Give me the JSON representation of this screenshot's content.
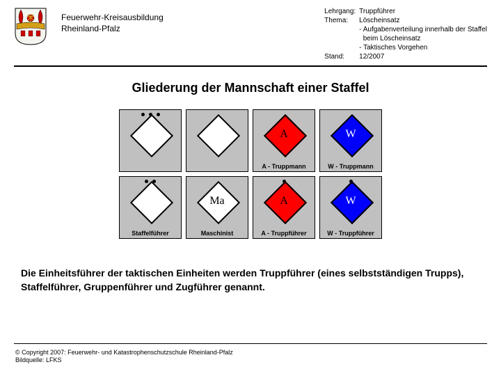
{
  "header": {
    "org_line1": "Feuerwehr-Kreisausbildung",
    "org_line2": "Rheinland-Pfalz",
    "meta": {
      "lehrgang_label": "Lehrgang:",
      "lehrgang": "Truppführer",
      "thema_label": "Thema:",
      "thema1": "Löscheinsatz",
      "thema2": "- Aufgabenverteilung innerhalb der Staffel",
      "thema3": "  beim Löscheinsatz",
      "thema4": "- Taktisches Vorgehen",
      "stand_label": "Stand:",
      "stand": "12/2007"
    }
  },
  "title": "Gliederung der Mannschaft einer Staffel",
  "cells": {
    "r0c0": {
      "bg": "#c0c0c0",
      "fill": "#ffffff",
      "letter": "",
      "textcolor": "#000000",
      "dots": 3,
      "caption": ""
    },
    "r0c1": {
      "bg": "#c0c0c0",
      "fill": "#ffffff",
      "letter": "",
      "textcolor": "#000000",
      "dots": 0,
      "caption": ""
    },
    "r0c2": {
      "bg": "#c0c0c0",
      "fill": "#ff0000",
      "letter": "A",
      "textcolor": "#000000",
      "dots": 0,
      "caption": "A - Truppmann"
    },
    "r0c3": {
      "bg": "#c0c0c0",
      "fill": "#0000ff",
      "letter": "W",
      "textcolor": "#ffffff",
      "dots": 0,
      "caption": "W - Truppmann"
    },
    "r1c0": {
      "bg": "#c0c0c0",
      "fill": "#ffffff",
      "letter": "",
      "textcolor": "#000000",
      "dots": 2,
      "caption": "Staffelführer"
    },
    "r1c1": {
      "bg": "#c0c0c0",
      "fill": "#ffffff",
      "letter": "Ma",
      "textcolor": "#000000",
      "dots": 0,
      "caption": "Maschinist"
    },
    "r1c2": {
      "bg": "#c0c0c0",
      "fill": "#ff0000",
      "letter": "A",
      "textcolor": "#000000",
      "dots": 1,
      "caption": "A - Truppführer"
    },
    "r1c3": {
      "bg": "#c0c0c0",
      "fill": "#0000ff",
      "letter": "W",
      "textcolor": "#ffffff",
      "dots": 1,
      "caption": "W - Truppführer"
    }
  },
  "paragraph": "Die Einheitsführer der taktischen Einheiten werden Truppführer (eines selbstständigen Trupps), Staffelführer, Gruppenführer und Zugführer genannt.",
  "footer": {
    "line1": "© Copyright 2007: Feuerwehr- und Katastrophenschutzschule Rheinland-Pfalz",
    "line2": "Bildquelle: LFKS"
  },
  "colors": {
    "cell_bg": "#c0c0c0",
    "red": "#ff0000",
    "blue": "#0000ff",
    "white": "#ffffff",
    "crest_shield": "#f5f5f0",
    "crest_band": "#d4a017",
    "crest_left": "#cc0000",
    "crest_right": "#cc0000"
  }
}
